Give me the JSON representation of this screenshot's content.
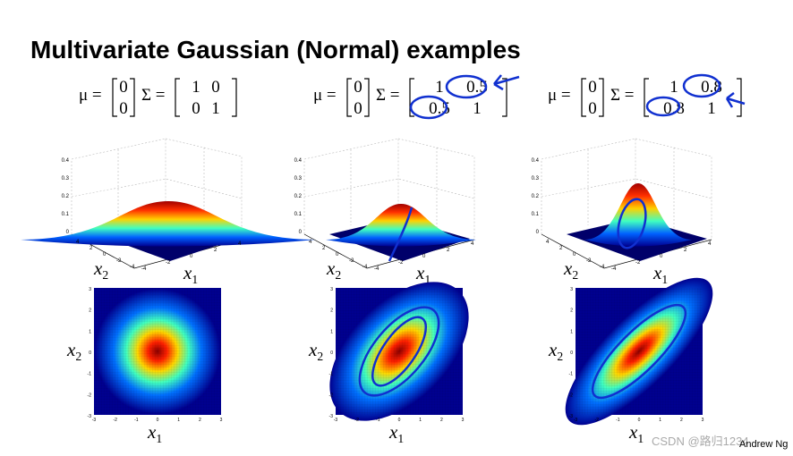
{
  "title": "Multivariate Gaussian (Normal) examples",
  "panels": [
    {
      "mu_label": "μ =",
      "mu": [
        "0",
        "0"
      ],
      "sigma_label": "Σ =",
      "sigma": [
        [
          "1",
          "0"
        ],
        [
          "0",
          "1"
        ]
      ],
      "zticks": [
        "0.4",
        "0.3",
        "0.2",
        "0.1",
        "0"
      ],
      "axis_ticks": [
        "-4",
        "-2",
        "0",
        "2",
        "4"
      ],
      "map_ticks": [
        "3",
        "2",
        "1",
        "0",
        "-1",
        "-2",
        "-3"
      ],
      "x1_label": {
        "base": "x",
        "sub": "1"
      },
      "x2_label": {
        "base": "x",
        "sub": "2"
      }
    },
    {
      "mu_label": "μ =",
      "mu": [
        "0",
        "0"
      ],
      "sigma_label": "Σ =",
      "sigma": [
        [
          "1",
          "0.5"
        ],
        [
          "0.5",
          "1"
        ]
      ],
      "zticks": [
        "0.4",
        "0.3",
        "0.2",
        "0.1",
        "0"
      ],
      "axis_ticks": [
        "-4",
        "-2",
        "0",
        "2",
        "4"
      ],
      "map_ticks": [
        "3",
        "2",
        "1",
        "0",
        "-1",
        "-2",
        "-3"
      ],
      "x1_label": {
        "base": "x",
        "sub": "1"
      },
      "x2_label": {
        "base": "x",
        "sub": "2"
      }
    },
    {
      "mu_label": "μ =",
      "mu": [
        "0",
        "0"
      ],
      "sigma_label": "Σ =",
      "sigma": [
        [
          "1",
          "0.8"
        ],
        [
          "0.8",
          "1"
        ]
      ],
      "zticks": [
        "0.4",
        "0.3",
        "0.2",
        "0.1",
        "0"
      ],
      "axis_ticks": [
        "-4",
        "-2",
        "0",
        "2",
        "4"
      ],
      "map_ticks": [
        "3",
        "2",
        "1",
        "0",
        "-1",
        "-2",
        "-3"
      ],
      "x1_label": {
        "base": "x",
        "sub": "1"
      },
      "x2_label": {
        "base": "x",
        "sub": "2"
      }
    }
  ],
  "author": "Andrew Ng",
  "watermark": "CSDN @路归1234"
}
